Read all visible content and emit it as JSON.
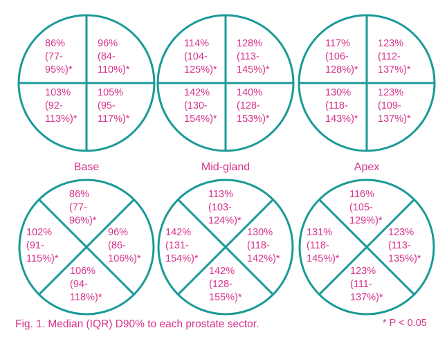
{
  "colors": {
    "stroke": "#1a9a98",
    "text": "#d6338a",
    "background": "#ffffff"
  },
  "circles": [
    {
      "id": "base-top",
      "layout": "plus",
      "label": "Base",
      "sectors": [
        {
          "position": "top-left",
          "lines": [
            "86%",
            "(77-",
            "95%)*"
          ]
        },
        {
          "position": "top-right",
          "lines": [
            "96%",
            "(84-",
            "110%)*"
          ]
        },
        {
          "position": "bottom-left",
          "lines": [
            "103%",
            "(92-",
            "113%)*"
          ]
        },
        {
          "position": "bottom-right",
          "lines": [
            "105%",
            "(95-",
            "117%)*"
          ]
        }
      ]
    },
    {
      "id": "midgland-top",
      "layout": "plus",
      "label": "Mid-gland",
      "sectors": [
        {
          "position": "top-left",
          "lines": [
            "114%",
            "(104-",
            "125%)*"
          ]
        },
        {
          "position": "top-right",
          "lines": [
            "128%",
            "(113-",
            "145%)*"
          ]
        },
        {
          "position": "bottom-left",
          "lines": [
            "142%",
            "(130-",
            "154%)*"
          ]
        },
        {
          "position": "bottom-right",
          "lines": [
            "140%",
            "(128-",
            "153%)*"
          ]
        }
      ]
    },
    {
      "id": "apex-top",
      "layout": "plus",
      "label": "Apex",
      "sectors": [
        {
          "position": "top-left",
          "lines": [
            "117%",
            "(106-",
            "128%)*"
          ]
        },
        {
          "position": "top-right",
          "lines": [
            "123%",
            "(112-",
            "137%)*"
          ]
        },
        {
          "position": "bottom-left",
          "lines": [
            "130%",
            "(118-",
            "143%)*"
          ]
        },
        {
          "position": "bottom-right",
          "lines": [
            "123%",
            "(109-",
            "137%)*"
          ]
        }
      ]
    },
    {
      "id": "base-bottom",
      "layout": "x",
      "label": "",
      "sectors": [
        {
          "position": "top",
          "lines": [
            "86%",
            "(77-",
            "96%)*"
          ]
        },
        {
          "position": "right",
          "lines": [
            "96%",
            "(86-",
            "106%)*"
          ]
        },
        {
          "position": "bottom",
          "lines": [
            "106%",
            "(94-",
            "118%)*"
          ]
        },
        {
          "position": "left",
          "lines": [
            "102%",
            "(91-",
            "115%)*"
          ]
        }
      ]
    },
    {
      "id": "midgland-bottom",
      "layout": "x",
      "label": "",
      "sectors": [
        {
          "position": "top",
          "lines": [
            "113%",
            "(103-",
            "124%)*"
          ]
        },
        {
          "position": "right",
          "lines": [
            "130%",
            "(118-",
            "142%)*"
          ]
        },
        {
          "position": "bottom",
          "lines": [
            "142%",
            "(128-",
            "155%)*"
          ]
        },
        {
          "position": "left",
          "lines": [
            "142%",
            "(131-",
            "154%)*"
          ]
        }
      ]
    },
    {
      "id": "apex-bottom",
      "layout": "x",
      "label": "",
      "sectors": [
        {
          "position": "top",
          "lines": [
            "116%",
            "(105-",
            "129%)*"
          ]
        },
        {
          "position": "right",
          "lines": [
            "123%",
            "(113-",
            "135%)*"
          ]
        },
        {
          "position": "bottom",
          "lines": [
            "123%",
            "(111-",
            "137%)*"
          ]
        },
        {
          "position": "left",
          "lines": [
            "131%",
            "(118-",
            "145%)*"
          ]
        }
      ]
    }
  ],
  "caption": "Fig. 1. Median (IQR) D90% to each prostate sector.",
  "significance_note": "* P < 0.05"
}
